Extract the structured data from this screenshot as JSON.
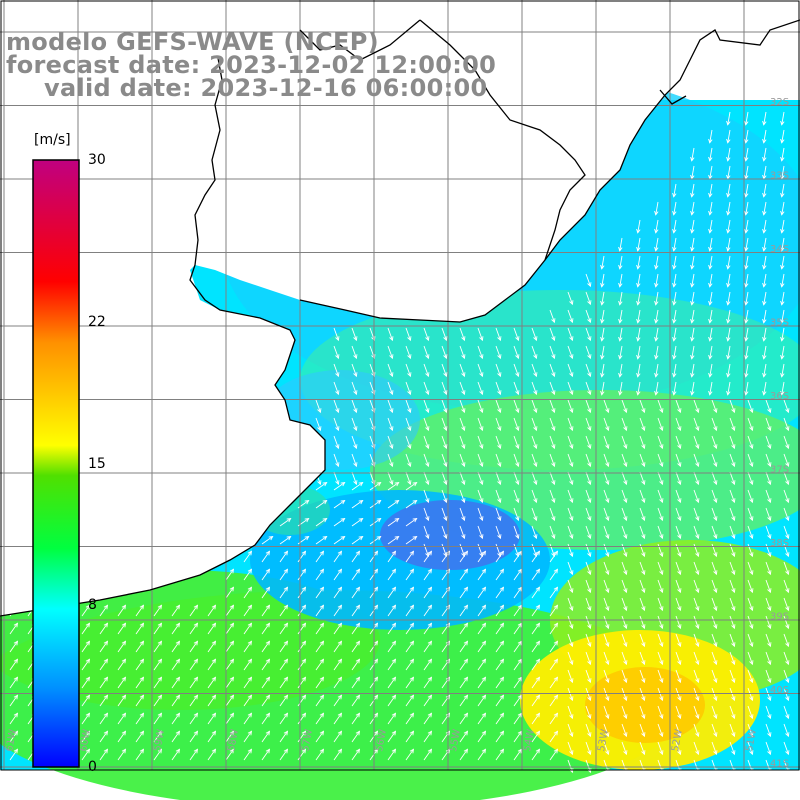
{
  "header": {
    "model_line": "modelo GEFS-WAVE (NCEP)",
    "forecast_line": "forecast date: 2023-12-02 12:00:00",
    "valid_line": "valid date: 2023-12-16 06:00:00"
  },
  "colorbar": {
    "unit": "[m/s]",
    "ticks": [
      "30",
      "22",
      "15",
      "8",
      "0"
    ],
    "tick_values": [
      30,
      22,
      15,
      8,
      0
    ],
    "range": [
      0,
      30
    ],
    "colors": [
      "#0000ff",
      "#00a0ff",
      "#00ffff",
      "#00ff30",
      "#30e000",
      "#ffff00",
      "#ff8000",
      "#ff0000",
      "#c00080"
    ]
  },
  "grid": {
    "lon_labels": [
      "61W",
      "60W",
      "59W",
      "58W",
      "57W",
      "56W",
      "55W",
      "54W",
      "53W",
      "52W",
      "51W"
    ],
    "lat_labels": [
      "32S",
      "33S",
      "34S",
      "35S",
      "36S",
      "37S",
      "38S",
      "39S",
      "40S",
      "41S"
    ]
  },
  "colors": {
    "land": "#ffffff",
    "arrow": "#ffffff",
    "gridline": "#808080",
    "coast": "#000000",
    "title": "#8a8a8a"
  }
}
